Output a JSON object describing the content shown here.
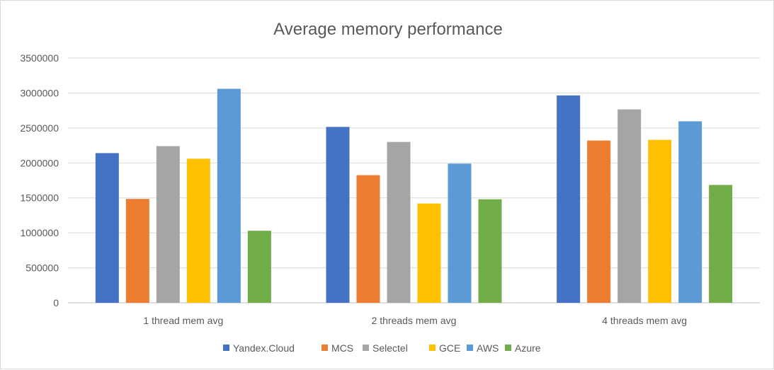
{
  "chart_data": {
    "type": "bar",
    "title": "Average memory performance",
    "categories": [
      "1 thread mem avg",
      "2 threads mem avg",
      "4 threads mem avg"
    ],
    "series": [
      {
        "name": "Yandex.Cloud",
        "color": "#4472c4",
        "values": [
          2140000,
          2515000,
          2965000
        ]
      },
      {
        "name": "MCS",
        "color": "#ed7d31",
        "values": [
          1485000,
          1825000,
          2320000
        ]
      },
      {
        "name": "Selectel",
        "color": "#a5a5a5",
        "values": [
          2240000,
          2300000,
          2765000
        ]
      },
      {
        "name": "GCE",
        "color": "#ffc000",
        "values": [
          2060000,
          1420000,
          2330000
        ]
      },
      {
        "name": "AWS",
        "color": "#5b9bd5",
        "values": [
          3060000,
          1990000,
          2595000
        ]
      },
      {
        "name": "Azure",
        "color": "#70ad47",
        "values": [
          1030000,
          1480000,
          1685000
        ]
      }
    ],
    "ylim": [
      0,
      3500000
    ],
    "yticks": [
      "0",
      "500000",
      "1000000",
      "1500000",
      "2000000",
      "2500000",
      "3000000",
      "3500000"
    ],
    "xlabel": "",
    "ylabel": "",
    "grid": true,
    "legend_position": "bottom"
  }
}
